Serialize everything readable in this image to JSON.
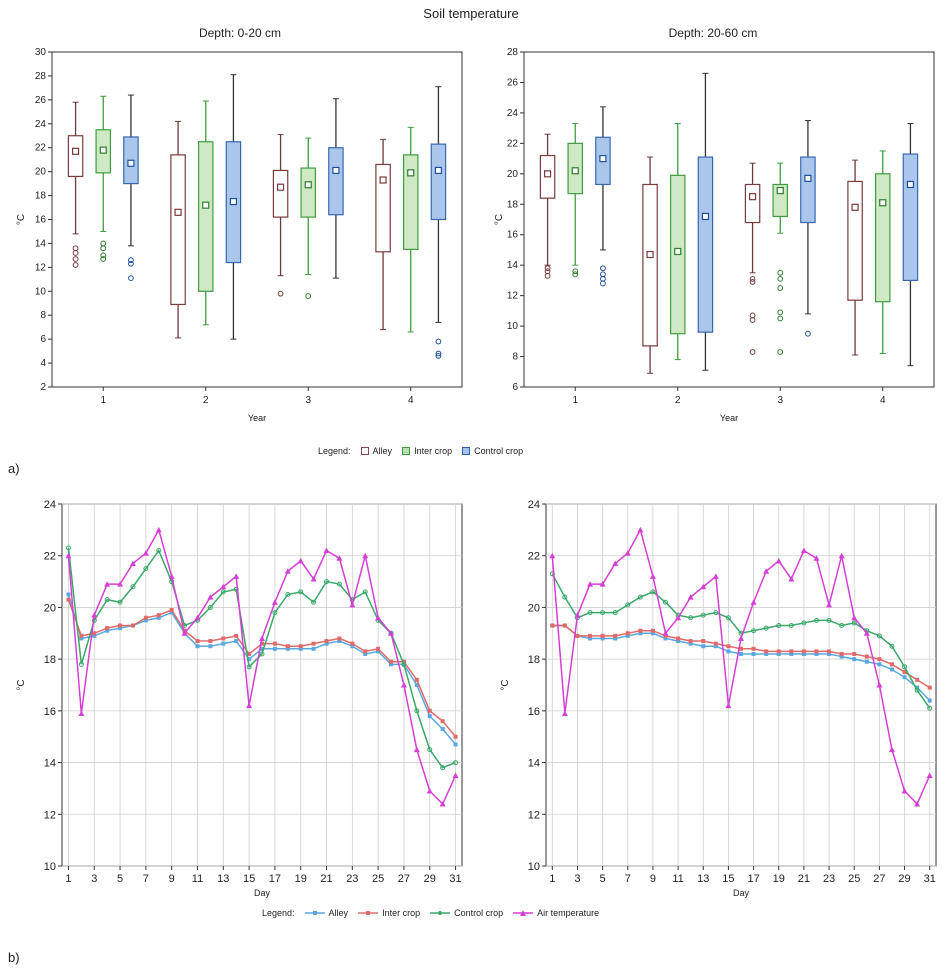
{
  "main_title": "Soil temperature",
  "legend_a": {
    "prefix": "Legend:",
    "items": [
      "Alley",
      "Inter crop",
      "Control crop"
    ]
  },
  "legend_b": {
    "prefix": "Legend:",
    "items": [
      "Alley",
      "Inter crop",
      "Control crop",
      "Air temperature"
    ]
  },
  "labels": {
    "a": "a)",
    "b": "b)"
  },
  "colors": {
    "alley": "#8b4a4a",
    "inter": "#3f9c3f",
    "control": "#2f5fa8",
    "air": "#cc33cc",
    "alley_line": "#5aa8e0",
    "inter_line": "#e06a6a",
    "control_line": "#3aa86a",
    "air_line": "#d63fd6"
  },
  "chart_data": [
    {
      "type": "box",
      "title": "Depth: 0-20 cm",
      "xlabel": "Year",
      "ylabel": "°C",
      "categories": [
        "1",
        "2",
        "3",
        "4"
      ],
      "ylim": [
        2,
        30
      ],
      "yticks": [
        2,
        4,
        6,
        8,
        10,
        12,
        14,
        16,
        18,
        20,
        22,
        24,
        26,
        28,
        30
      ],
      "series": [
        {
          "name": "Alley",
          "boxes": [
            {
              "min": 14.8,
              "q1": 19.6,
              "mean": 21.7,
              "q3": 23.0,
              "max": 25.8,
              "outliers": [
                12.2,
                12.7,
                13.2,
                13.6
              ]
            },
            {
              "min": 6.1,
              "q1": 8.9,
              "mean": 16.6,
              "q3": 21.4,
              "max": 24.2,
              "outliers": []
            },
            {
              "min": 11.3,
              "q1": 16.2,
              "mean": 18.7,
              "q3": 20.1,
              "max": 23.1,
              "outliers": [
                9.8
              ]
            },
            {
              "min": 6.8,
              "q1": 13.3,
              "mean": 19.3,
              "q3": 20.6,
              "max": 22.7,
              "outliers": []
            }
          ]
        },
        {
          "name": "Inter crop",
          "boxes": [
            {
              "min": 15.0,
              "q1": 19.9,
              "mean": 21.8,
              "q3": 23.5,
              "max": 26.3,
              "outliers": [
                12.7,
                13.0,
                13.6,
                14.0
              ]
            },
            {
              "min": 7.2,
              "q1": 10.0,
              "mean": 17.2,
              "q3": 22.5,
              "max": 25.9,
              "outliers": []
            },
            {
              "min": 11.4,
              "q1": 16.2,
              "mean": 18.9,
              "q3": 20.3,
              "max": 22.8,
              "outliers": [
                9.6
              ]
            },
            {
              "min": 6.6,
              "q1": 13.5,
              "mean": 19.9,
              "q3": 21.4,
              "max": 23.7,
              "outliers": []
            }
          ]
        },
        {
          "name": "Control crop",
          "boxes": [
            {
              "min": 13.8,
              "q1": 19.0,
              "mean": 20.7,
              "q3": 22.9,
              "max": 26.4,
              "outliers": [
                11.1,
                12.3,
                12.6
              ]
            },
            {
              "min": 6.0,
              "q1": 12.4,
              "mean": 17.5,
              "q3": 22.5,
              "max": 28.1,
              "outliers": []
            },
            {
              "min": 11.1,
              "q1": 16.4,
              "mean": 20.1,
              "q3": 22.0,
              "max": 26.1,
              "outliers": []
            },
            {
              "min": 7.4,
              "q1": 16.0,
              "mean": 20.1,
              "q3": 22.3,
              "max": 27.1,
              "outliers": [
                4.6,
                4.8,
                5.8
              ]
            }
          ]
        }
      ]
    },
    {
      "type": "box",
      "title": "Depth: 20-60 cm",
      "xlabel": "Year",
      "ylabel": "°C",
      "categories": [
        "1",
        "2",
        "3",
        "4"
      ],
      "ylim": [
        6,
        28
      ],
      "yticks": [
        6,
        8,
        10,
        12,
        14,
        16,
        18,
        20,
        22,
        24,
        26,
        28
      ],
      "series": [
        {
          "name": "Alley",
          "boxes": [
            {
              "min": 14.0,
              "q1": 18.4,
              "mean": 20.0,
              "q3": 21.2,
              "max": 22.6,
              "outliers": [
                13.3,
                13.6,
                13.8
              ]
            },
            {
              "min": 6.9,
              "q1": 8.7,
              "mean": 14.7,
              "q3": 19.3,
              "max": 21.1,
              "outliers": []
            },
            {
              "min": 13.5,
              "q1": 16.8,
              "mean": 18.5,
              "q3": 19.3,
              "max": 20.7,
              "outliers": [
                8.3,
                10.4,
                10.7,
                12.9,
                13.1
              ]
            },
            {
              "min": 8.1,
              "q1": 11.7,
              "mean": 17.8,
              "q3": 19.5,
              "max": 20.9,
              "outliers": []
            }
          ]
        },
        {
          "name": "Inter crop",
          "boxes": [
            {
              "min": 14.0,
              "q1": 18.7,
              "mean": 20.2,
              "q3": 22.0,
              "max": 23.3,
              "outliers": [
                13.4,
                13.6
              ]
            },
            {
              "min": 7.8,
              "q1": 9.5,
              "mean": 14.9,
              "q3": 19.9,
              "max": 23.3,
              "outliers": []
            },
            {
              "min": 16.1,
              "q1": 17.2,
              "mean": 18.9,
              "q3": 19.3,
              "max": 20.7,
              "outliers": [
                8.3,
                10.5,
                10.9,
                12.5,
                13.1,
                13.5
              ]
            },
            {
              "min": 8.2,
              "q1": 11.6,
              "mean": 18.1,
              "q3": 20.0,
              "max": 21.5,
              "outliers": []
            }
          ]
        },
        {
          "name": "Control crop",
          "boxes": [
            {
              "min": 15.0,
              "q1": 19.3,
              "mean": 21.0,
              "q3": 22.4,
              "max": 24.4,
              "outliers": [
                12.8,
                13.1,
                13.4,
                13.8
              ]
            },
            {
              "min": 7.1,
              "q1": 9.6,
              "mean": 17.2,
              "q3": 21.1,
              "max": 26.6,
              "outliers": []
            },
            {
              "min": 10.8,
              "q1": 16.8,
              "mean": 19.7,
              "q3": 21.1,
              "max": 23.5,
              "outliers": [
                9.5
              ]
            },
            {
              "min": 7.4,
              "q1": 13.0,
              "mean": 19.3,
              "q3": 21.3,
              "max": 23.3,
              "outliers": []
            }
          ]
        }
      ]
    },
    {
      "type": "line",
      "xlabel": "Day",
      "ylabel": "°C",
      "xticks": [
        1,
        3,
        5,
        7,
        9,
        11,
        13,
        15,
        17,
        19,
        21,
        23,
        25,
        27,
        29,
        31
      ],
      "ylim": [
        10,
        24
      ],
      "yticks": [
        10,
        12,
        14,
        16,
        18,
        20,
        22,
        24
      ],
      "x": [
        1,
        2,
        3,
        4,
        5,
        6,
        7,
        8,
        9,
        10,
        11,
        12,
        13,
        14,
        15,
        16,
        17,
        18,
        19,
        20,
        21,
        22,
        23,
        24,
        25,
        26,
        27,
        28,
        29,
        30,
        31
      ],
      "series": [
        {
          "name": "Alley",
          "values": [
            20.5,
            18.8,
            18.9,
            19.1,
            19.2,
            19.3,
            19.5,
            19.6,
            19.8,
            19.0,
            18.5,
            18.5,
            18.6,
            18.7,
            18.0,
            18.4,
            18.4,
            18.4,
            18.4,
            18.4,
            18.6,
            18.7,
            18.5,
            18.2,
            18.3,
            17.8,
            17.8,
            17.0,
            15.8,
            15.3,
            14.7
          ]
        },
        {
          "name": "Inter crop",
          "values": [
            20.3,
            18.9,
            19.0,
            19.2,
            19.3,
            19.3,
            19.6,
            19.7,
            19.9,
            19.1,
            18.7,
            18.7,
            18.8,
            18.9,
            18.2,
            18.6,
            18.6,
            18.5,
            18.5,
            18.6,
            18.7,
            18.8,
            18.6,
            18.3,
            18.4,
            17.9,
            17.9,
            17.2,
            16.0,
            15.6,
            15.0
          ]
        },
        {
          "name": "Control crop",
          "values": [
            22.3,
            17.8,
            19.5,
            20.3,
            20.2,
            20.8,
            21.5,
            22.2,
            21.0,
            19.3,
            19.5,
            20.0,
            20.6,
            20.7,
            17.7,
            18.2,
            19.8,
            20.5,
            20.6,
            20.2,
            21.0,
            20.9,
            20.3,
            20.6,
            19.5,
            19.0,
            17.8,
            16.0,
            14.5,
            13.8,
            14.0
          ]
        },
        {
          "name": "Air temperature",
          "values": [
            22.0,
            15.9,
            19.7,
            20.9,
            20.9,
            21.7,
            22.1,
            23.0,
            21.2,
            19.0,
            19.6,
            20.4,
            20.8,
            21.2,
            16.2,
            18.8,
            20.2,
            21.4,
            21.8,
            21.1,
            22.2,
            21.9,
            20.1,
            22.0,
            19.6,
            19.0,
            17.0,
            14.5,
            12.9,
            12.4,
            13.5
          ]
        }
      ]
    },
    {
      "type": "line",
      "xlabel": "Day",
      "ylabel": "°C",
      "xticks": [
        1,
        3,
        5,
        7,
        9,
        11,
        13,
        15,
        17,
        19,
        21,
        23,
        25,
        27,
        29,
        31
      ],
      "ylim": [
        10,
        24
      ],
      "yticks": [
        10,
        12,
        14,
        16,
        18,
        20,
        22,
        24
      ],
      "x": [
        1,
        2,
        3,
        4,
        5,
        6,
        7,
        8,
        9,
        10,
        11,
        12,
        13,
        14,
        15,
        16,
        17,
        18,
        19,
        20,
        21,
        22,
        23,
        24,
        25,
        26,
        27,
        28,
        29,
        30,
        31
      ],
      "series": [
        {
          "name": "Alley",
          "values": [
            19.3,
            19.3,
            18.9,
            18.8,
            18.8,
            18.8,
            18.9,
            19.0,
            19.0,
            18.8,
            18.7,
            18.6,
            18.5,
            18.5,
            18.3,
            18.2,
            18.2,
            18.2,
            18.2,
            18.2,
            18.2,
            18.2,
            18.2,
            18.1,
            18.0,
            17.9,
            17.8,
            17.6,
            17.3,
            16.9,
            16.4
          ]
        },
        {
          "name": "Inter crop",
          "values": [
            19.3,
            19.3,
            18.9,
            18.9,
            18.9,
            18.9,
            19.0,
            19.1,
            19.1,
            18.9,
            18.8,
            18.7,
            18.7,
            18.6,
            18.5,
            18.4,
            18.4,
            18.3,
            18.3,
            18.3,
            18.3,
            18.3,
            18.3,
            18.2,
            18.2,
            18.1,
            18.0,
            17.8,
            17.5,
            17.2,
            16.9
          ]
        },
        {
          "name": "Control crop",
          "values": [
            21.3,
            20.4,
            19.6,
            19.8,
            19.8,
            19.8,
            20.1,
            20.4,
            20.6,
            20.2,
            19.7,
            19.6,
            19.7,
            19.8,
            19.6,
            19.0,
            19.1,
            19.2,
            19.3,
            19.3,
            19.4,
            19.5,
            19.5,
            19.3,
            19.4,
            19.1,
            18.9,
            18.5,
            17.7,
            16.8,
            16.1
          ]
        },
        {
          "name": "Air temperature",
          "values": [
            22.0,
            15.9,
            19.7,
            20.9,
            20.9,
            21.7,
            22.1,
            23.0,
            21.2,
            19.0,
            19.6,
            20.4,
            20.8,
            21.2,
            16.2,
            18.8,
            20.2,
            21.4,
            21.8,
            21.1,
            22.2,
            21.9,
            20.1,
            22.0,
            19.6,
            19.0,
            17.0,
            14.5,
            12.9,
            12.4,
            13.5
          ]
        }
      ]
    }
  ]
}
